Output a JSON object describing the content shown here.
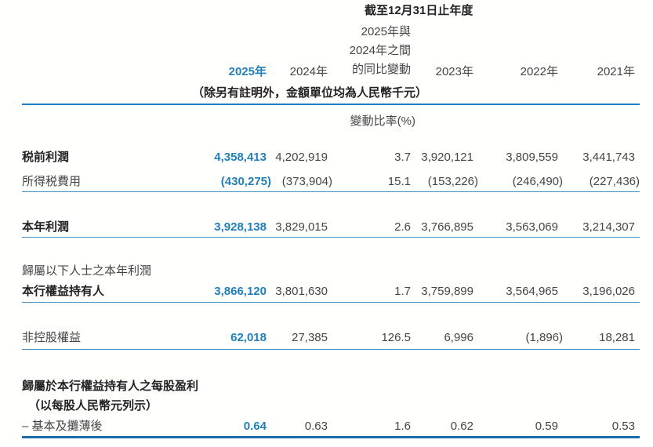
{
  "colors": {
    "accent": "#2180ba",
    "header_rule": "#1e7ec1",
    "thin_rule": "#3d91c6",
    "thick_rule": "#1b6ca9",
    "text": "#454547",
    "heading_text": "#242124",
    "background": "#fffffd"
  },
  "header": {
    "caption": "截至12月31日止年度",
    "y2025": "2025年",
    "y2024": "2024年",
    "change_lines": [
      "2025年與",
      "2024年之間",
      "的同比變動"
    ],
    "y2023": "2023年",
    "y2022": "2022年",
    "y2021": "2021年",
    "unit_note": "（除另有註明外，金額單位均為人民幣千元）",
    "ratio_label": "變動比率(%)"
  },
  "table": {
    "rows": [
      {
        "label": "税前利潤",
        "values": [
          "4,358,413",
          "4,202,919",
          "3.7",
          "3,920,121",
          "3,809,559",
          "3,441,743"
        ]
      },
      {
        "label": "所得税費用",
        "values": [
          "(430,275)",
          "(373,904)",
          "15.1",
          "(153,226)",
          "(246,490)",
          "(227,436)"
        ]
      },
      {
        "label": "本年利潤",
        "values": [
          "3,928,138",
          "3,829,015",
          "2.6",
          "3,766,895",
          "3,563,069",
          "3,214,307"
        ]
      },
      {
        "label": "歸屬以下人士之本年利潤",
        "values": []
      },
      {
        "label": "本行權益持有人",
        "values": [
          "3,866,120",
          "3,801,630",
          "1.7",
          "3,759,899",
          "3,564,965",
          "3,196,026"
        ]
      },
      {
        "label": "非控股權益",
        "values": [
          "62,018",
          "27,385",
          "126.5",
          "6,996",
          "(1,896)",
          "18,281"
        ]
      },
      {
        "label": "歸屬於本行權益持有人之每股盈利",
        "values": []
      },
      {
        "label": "（以每股人民幣元列示）",
        "values": []
      },
      {
        "label": "– 基本及攤薄後",
        "values": [
          "0.64",
          "0.63",
          "1.6",
          "0.62",
          "0.59",
          "0.53"
        ]
      }
    ]
  }
}
